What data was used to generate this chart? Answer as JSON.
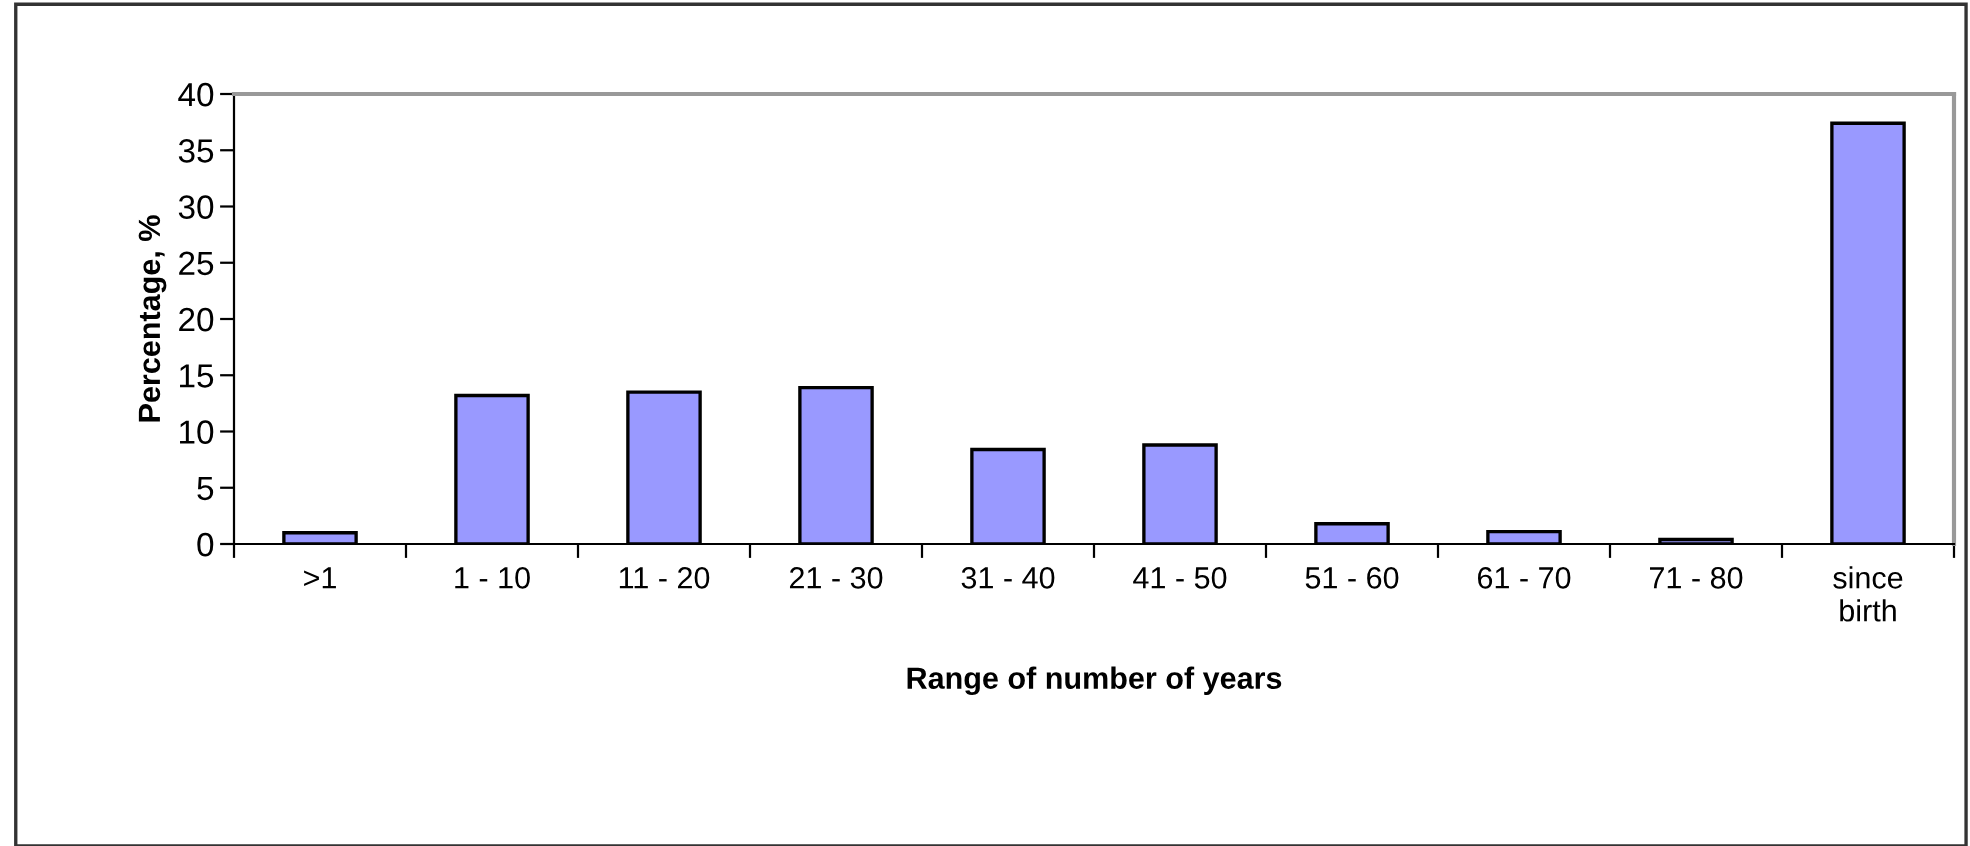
{
  "chart_data": {
    "type": "bar",
    "xlabel": "Range of number of years",
    "ylabel": "Percentage, %",
    "categories": [
      ">1",
      "1 - 10",
      "11 - 20",
      "21 - 30",
      "31 - 40",
      "41 - 50",
      "51 - 60",
      "61 - 70",
      "71 - 80",
      "since\nbirth"
    ],
    "values": [
      1.0,
      13.2,
      13.5,
      13.9,
      8.4,
      8.8,
      1.8,
      1.1,
      0.4,
      37.4
    ],
    "color": "#9999ff",
    "ylim": [
      0,
      40
    ],
    "yticks": [
      0,
      5,
      10,
      15,
      20,
      25,
      30,
      35,
      40
    ],
    "grid": false,
    "legend": false
  }
}
